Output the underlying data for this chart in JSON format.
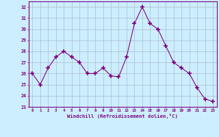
{
  "x": [
    0,
    1,
    2,
    3,
    4,
    5,
    6,
    7,
    8,
    9,
    10,
    11,
    12,
    13,
    14,
    15,
    16,
    17,
    18,
    19,
    20,
    21,
    22,
    23
  ],
  "y": [
    26.0,
    25.0,
    26.5,
    27.5,
    28.0,
    27.5,
    27.0,
    26.0,
    26.0,
    26.5,
    25.8,
    25.7,
    27.5,
    30.5,
    32.0,
    30.5,
    30.0,
    28.5,
    27.0,
    26.5,
    26.0,
    24.7,
    23.7,
    23.5
  ],
  "line_color": "#800080",
  "marker": "+",
  "marker_size": 4,
  "marker_lw": 1.2,
  "bg_color": "#cceeff",
  "grid_color": "#aabbcc",
  "tick_color": "#800080",
  "label_color": "#800080",
  "xlabel": "Windchill (Refroidissement éolien,°C)",
  "ylabel_ticks": [
    23,
    24,
    25,
    26,
    27,
    28,
    29,
    30,
    31,
    32
  ],
  "xlim": [
    -0.5,
    23.5
  ],
  "ylim": [
    23,
    32.5
  ],
  "xticks": [
    0,
    1,
    2,
    3,
    4,
    5,
    6,
    7,
    8,
    9,
    10,
    11,
    12,
    13,
    14,
    15,
    16,
    17,
    18,
    19,
    20,
    21,
    22,
    23
  ]
}
